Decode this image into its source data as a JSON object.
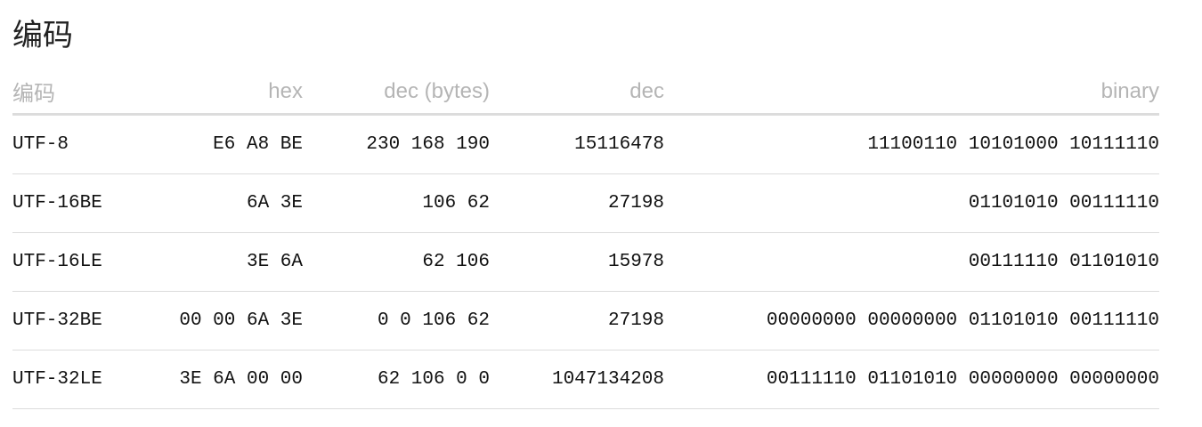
{
  "title": "编码",
  "table": {
    "headers": {
      "encoding": "编码",
      "hex": "hex",
      "dec_bytes": "dec (bytes)",
      "dec": "dec",
      "binary": "binary"
    },
    "rows": [
      {
        "encoding": "UTF-8",
        "hex": "E6 A8 BE",
        "dec_bytes": "230 168 190",
        "dec": "15116478",
        "binary": "11100110 10101000 10111110"
      },
      {
        "encoding": "UTF-16BE",
        "hex": "6A 3E",
        "dec_bytes": "106 62",
        "dec": "27198",
        "binary": "01101010 00111110"
      },
      {
        "encoding": "UTF-16LE",
        "hex": "3E 6A",
        "dec_bytes": "62 106",
        "dec": "15978",
        "binary": "00111110 01101010"
      },
      {
        "encoding": "UTF-32BE",
        "hex": "00 00 6A 3E",
        "dec_bytes": "0 0 106 62",
        "dec": "27198",
        "binary": "00000000 00000000 01101010 00111110"
      },
      {
        "encoding": "UTF-32LE",
        "hex": "3E 6A 00 00",
        "dec_bytes": "62 106 0 0",
        "dec": "1047134208",
        "binary": "00111110 01101010 00000000 00000000"
      }
    ]
  }
}
